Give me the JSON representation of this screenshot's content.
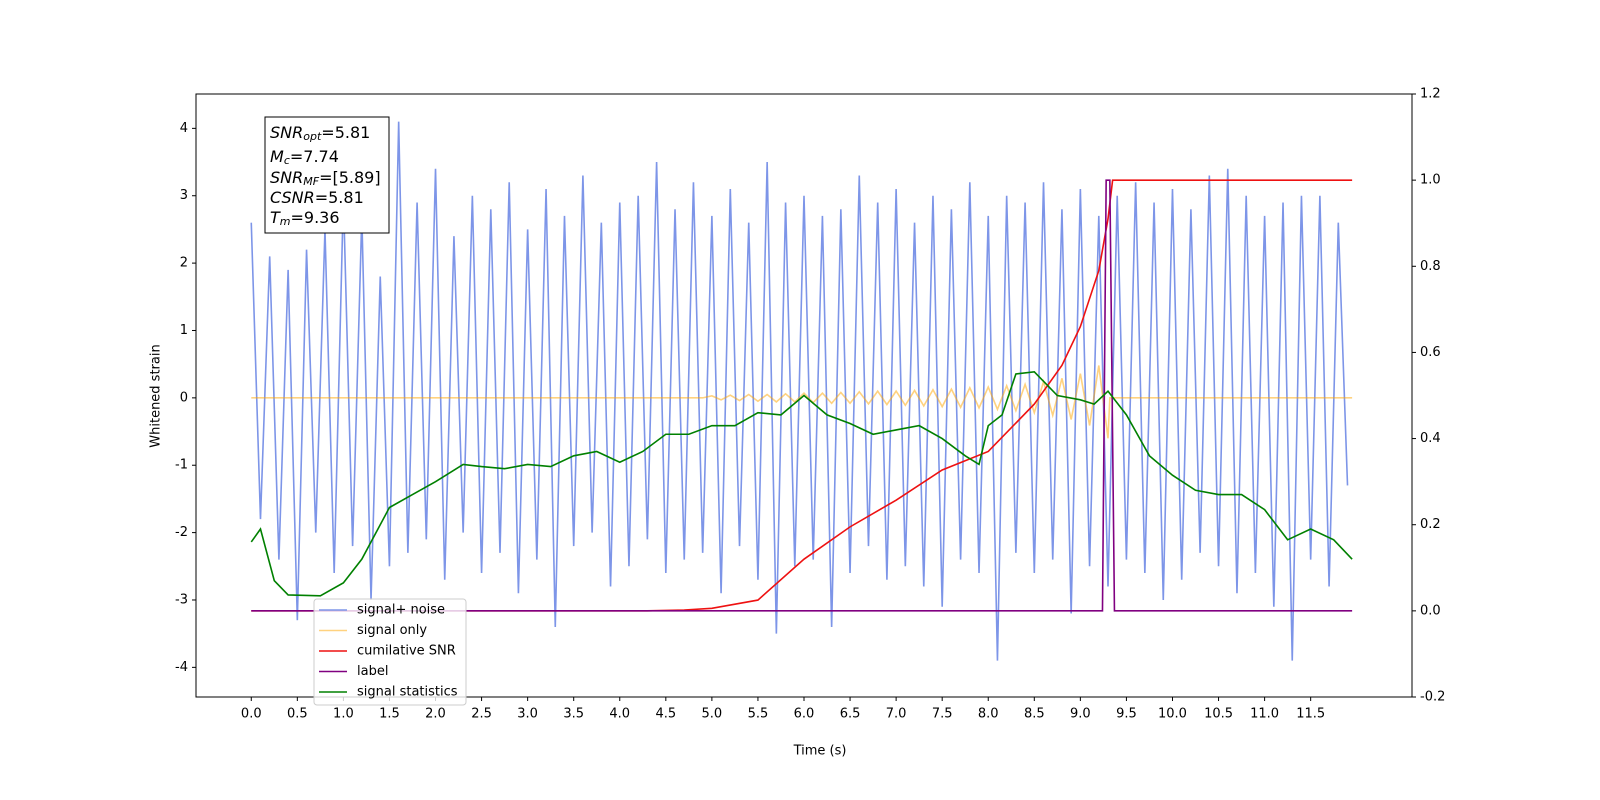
{
  "chart_data": {
    "type": "line",
    "xlabel": "Time (s)",
    "ylabel": "Whitened strain",
    "xlim": [
      -0.6,
      12.6
    ],
    "ylim": [
      -4.44,
      4.51
    ],
    "y2lim": [
      -0.2,
      1.2
    ],
    "xticks": [
      {
        "value": 0,
        "label": "0.0"
      },
      0.5,
      {
        "value": 1,
        "label": "1.0"
      },
      1.5,
      {
        "value": 2,
        "label": "2.0"
      },
      2.5,
      {
        "value": 3,
        "label": "3.0"
      },
      3.5,
      {
        "value": 4,
        "label": "4.0"
      },
      4.5,
      {
        "value": 5,
        "label": "5.0"
      },
      5.5,
      {
        "value": 6,
        "label": "6.0"
      },
      6.5,
      {
        "value": 7,
        "label": "7.0"
      },
      7.5,
      {
        "value": 8,
        "label": "8.0"
      },
      8.5,
      {
        "value": 9,
        "label": "9.0"
      },
      9.5,
      {
        "value": 10,
        "label": "10.0"
      },
      10.5,
      {
        "value": 11,
        "label": "11.0"
      },
      11.5
    ],
    "yticks": [
      -4,
      -3,
      -2,
      -1,
      0,
      1,
      2,
      3,
      4
    ],
    "y2ticks": [
      -0.2,
      {
        "value": 0,
        "label": "0.0"
      },
      0.2,
      0.4,
      0.6,
      0.8,
      {
        "value": 1,
        "label": "1.0"
      },
      1.2
    ],
    "legend": "lower left",
    "annotation": [
      {
        "symbol": "SNR",
        "subscript": "opt",
        "text": "=5.81"
      },
      {
        "symbol": "M",
        "subscript": "c",
        "text": "=7.74"
      },
      {
        "symbol": "SNR",
        "subscript": "MF",
        "text": "=[5.89]"
      },
      {
        "symbol": "CSNR",
        "subscript": "",
        "text": "=5.81"
      },
      {
        "symbol": "T",
        "subscript": "m",
        "text": "=9.36"
      }
    ],
    "series": [
      {
        "name": "signal+ noise",
        "color": "#6f8ae6",
        "alpha": 0.9,
        "axis": "y",
        "x": [
          0,
          0.1,
          0.2,
          0.3,
          0.4,
          0.5,
          0.6,
          0.7,
          0.8,
          0.9,
          1,
          1.1,
          1.2,
          1.3,
          1.4,
          1.5,
          1.6,
          1.7,
          1.8,
          1.9,
          2,
          2.1,
          2.2,
          2.3,
          2.4,
          2.5,
          2.6,
          2.7,
          2.8,
          2.9,
          3,
          3.1,
          3.2,
          3.3,
          3.4,
          3.5,
          3.6,
          3.7,
          3.8,
          3.9,
          4,
          4.1,
          4.2,
          4.3,
          4.4,
          4.5,
          4.6,
          4.7,
          4.8,
          4.9,
          5,
          5.1,
          5.2,
          5.3,
          5.4,
          5.5,
          5.6,
          5.7,
          5.8,
          5.9,
          6,
          6.1,
          6.2,
          6.3,
          6.4,
          6.5,
          6.6,
          6.7,
          6.8,
          6.9,
          7,
          7.1,
          7.2,
          7.3,
          7.4,
          7.5,
          7.6,
          7.7,
          7.8,
          7.9,
          8,
          8.1,
          8.2,
          8.3,
          8.4,
          8.5,
          8.6,
          8.7,
          8.8,
          8.9,
          9,
          9.1,
          9.2,
          9.3,
          9.4,
          9.5,
          9.6,
          9.7,
          9.8,
          9.9,
          10,
          10.1,
          10.2,
          10.3,
          10.4,
          10.5,
          10.6,
          10.7,
          10.8,
          10.9,
          11,
          11.1,
          11.2,
          11.3,
          11.4,
          11.5,
          11.6,
          11.7,
          11.8,
          11.9
        ],
        "values": [
          2.6,
          -1.8,
          2.1,
          -2.4,
          1.9,
          -3.3,
          2.2,
          -2.0,
          2.5,
          -2.6,
          3.0,
          -2.2,
          2.7,
          -3.0,
          1.8,
          -2.5,
          4.1,
          -2.3,
          2.9,
          -2.1,
          3.4,
          -2.7,
          2.4,
          -2.0,
          3.0,
          -2.6,
          2.8,
          -2.3,
          3.2,
          -2.9,
          2.5,
          -2.4,
          3.1,
          -3.4,
          2.7,
          -2.2,
          3.3,
          -2.0,
          2.6,
          -2.8,
          2.9,
          -2.5,
          3.0,
          -2.1,
          3.5,
          -2.6,
          2.8,
          -2.4,
          3.2,
          -2.3,
          2.7,
          -2.9,
          3.1,
          -2.2,
          2.6,
          -2.7,
          3.5,
          -3.5,
          2.9,
          -2.5,
          3.0,
          -2.4,
          2.7,
          -3.4,
          2.8,
          -2.6,
          3.3,
          -2.2,
          2.9,
          -2.7,
          3.1,
          -2.5,
          2.6,
          -2.8,
          3.0,
          -3.1,
          2.8,
          -2.4,
          3.2,
          -2.6,
          2.7,
          -3.9,
          3.0,
          -2.3,
          2.9,
          -2.6,
          3.2,
          -2.4,
          2.8,
          -3.2,
          3.1,
          -2.5,
          2.7,
          -2.8,
          3.0,
          -2.4,
          3.2,
          -2.6,
          2.9,
          -3.0,
          3.1,
          -2.7,
          2.8,
          -2.3,
          3.3,
          -2.5,
          3.4,
          -2.9,
          3.0,
          -2.6,
          2.7,
          -3.1,
          2.9,
          -3.9,
          3.0,
          -2.4,
          3.0,
          -2.8,
          2.6,
          -1.3
        ]
      },
      {
        "name": "signal only",
        "color": "#ffa500",
        "alpha": 0.5,
        "axis": "y",
        "x": [
          0,
          4.9,
          5,
          5.1,
          5.2,
          5.3,
          5.4,
          5.5,
          5.6,
          5.7,
          5.8,
          5.9,
          6,
          6.1,
          6.2,
          6.3,
          6.4,
          6.5,
          6.6,
          6.7,
          6.8,
          6.9,
          7,
          7.1,
          7.2,
          7.3,
          7.4,
          7.5,
          7.6,
          7.7,
          7.8,
          7.9,
          8,
          8.1,
          8.2,
          8.3,
          8.4,
          8.5,
          8.6,
          8.7,
          8.8,
          8.9,
          9,
          9.1,
          9.2,
          9.3,
          9.32,
          11.95
        ],
        "values": [
          0,
          0,
          0.03,
          -0.03,
          0.04,
          -0.04,
          0.05,
          -0.05,
          0.05,
          -0.06,
          0.06,
          -0.06,
          0.07,
          -0.07,
          0.07,
          -0.08,
          0.08,
          -0.08,
          0.09,
          -0.09,
          0.1,
          -0.1,
          0.1,
          -0.11,
          0.11,
          -0.12,
          0.12,
          -0.13,
          0.13,
          -0.14,
          0.15,
          -0.15,
          0.16,
          -0.17,
          0.18,
          -0.19,
          0.2,
          -0.22,
          0.24,
          -0.26,
          0.29,
          -0.32,
          0.36,
          -0.41,
          0.48,
          -0.6,
          0,
          0
        ]
      },
      {
        "name": "cumilative SNR",
        "color": "#ee1111",
        "alpha": 1,
        "axis": "y2",
        "x": [
          0,
          4.3,
          4.7,
          5,
          5.5,
          6,
          6.5,
          7,
          7.5,
          8,
          8.5,
          8.8,
          9,
          9.2,
          9.3,
          9.35,
          11.95
        ],
        "values": [
          0,
          0,
          0.002,
          0.006,
          0.025,
          0.12,
          0.195,
          0.257,
          0.327,
          0.37,
          0.48,
          0.57,
          0.66,
          0.79,
          0.91,
          1,
          1
        ]
      },
      {
        "name": "label",
        "color": "#800080",
        "alpha": 1,
        "axis": "y2",
        "x": [
          0,
          9.24,
          9.28,
          9.32,
          9.37,
          11.95
        ],
        "values": [
          0,
          0,
          1,
          1,
          0,
          0
        ]
      },
      {
        "name": "signal statistics",
        "color": "#008000",
        "alpha": 1,
        "axis": "y2",
        "x": [
          0,
          0.1,
          0.25,
          0.4,
          0.75,
          1,
          1.2,
          1.5,
          1.75,
          2,
          2.3,
          2.5,
          2.75,
          3,
          3.25,
          3.5,
          3.75,
          4,
          4.25,
          4.5,
          4.75,
          5,
          5.25,
          5.5,
          5.75,
          6,
          6.25,
          6.5,
          6.75,
          7,
          7.25,
          7.5,
          7.75,
          7.9,
          8,
          8.15,
          8.3,
          8.5,
          8.75,
          9,
          9.15,
          9.3,
          9.5,
          9.75,
          10,
          10.25,
          10.5,
          10.75,
          11,
          11.25,
          11.5,
          11.75,
          11.95
        ],
        "values": [
          0.16,
          0.19,
          0.07,
          0.037,
          0.035,
          0.065,
          0.12,
          0.24,
          0.27,
          0.3,
          0.34,
          0.335,
          0.33,
          0.34,
          0.335,
          0.36,
          0.37,
          0.345,
          0.37,
          0.41,
          0.41,
          0.43,
          0.43,
          0.46,
          0.455,
          0.5,
          0.455,
          0.435,
          0.41,
          0.42,
          0.43,
          0.4,
          0.36,
          0.34,
          0.43,
          0.455,
          0.55,
          0.555,
          0.5,
          0.49,
          0.48,
          0.51,
          0.455,
          0.36,
          0.315,
          0.28,
          0.27,
          0.27,
          0.235,
          0.165,
          0.19,
          0.165,
          0.12
        ]
      }
    ]
  }
}
